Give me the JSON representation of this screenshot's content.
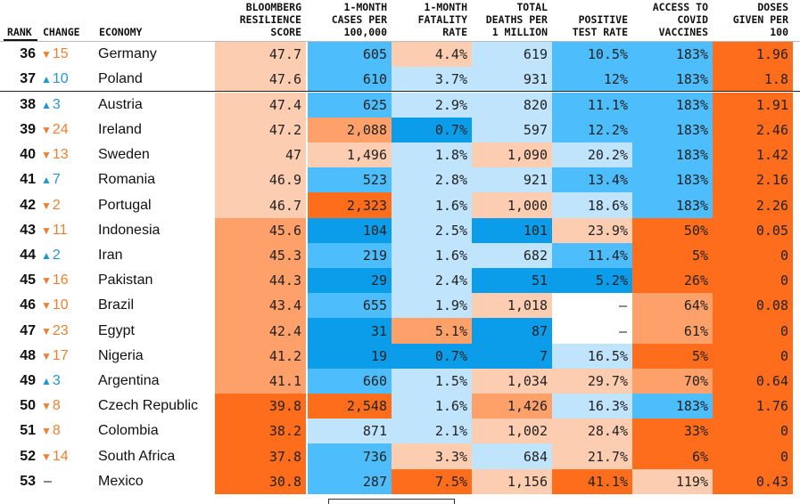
{
  "colors": {
    "dark_orange": "#fe6d1b",
    "mid_orange": "#fea06a",
    "light_orange": "#fdcdb1",
    "light_blue": "#bfe4fb",
    "mid_blue": "#4ebdfb",
    "dark_blue": "#0b9de9",
    "up_arrow": "#2196d3",
    "down_arrow": "#f07f2f"
  },
  "chart_data": {
    "type": "table",
    "columns": [
      {
        "key": "rank",
        "label": "RANK"
      },
      {
        "key": "change",
        "label": "CHANGE"
      },
      {
        "key": "economy",
        "label": "ECONOMY"
      },
      {
        "key": "score",
        "label": [
          "BLOOMBERG",
          "RESILIENCE",
          "SCORE"
        ]
      },
      {
        "key": "cases",
        "label": [
          "1-MONTH",
          "CASES PER",
          "100,000"
        ]
      },
      {
        "key": "fatality",
        "label": [
          "1-MONTH",
          "FATALITY",
          "RATE"
        ]
      },
      {
        "key": "deaths",
        "label": [
          "TOTAL",
          "DEATHS PER",
          "1 MILLION"
        ]
      },
      {
        "key": "positive",
        "label": [
          "POSITIVE",
          "TEST RATE"
        ]
      },
      {
        "key": "access",
        "label": [
          "ACCESS TO",
          "COVID",
          "VACCINES"
        ]
      },
      {
        "key": "doses",
        "label": [
          "DOSES",
          "GIVEN PER",
          "100"
        ]
      }
    ],
    "rows": [
      {
        "rank": "36",
        "dir": "down",
        "change": "15",
        "economy": "Germany",
        "score": "47.7",
        "cases": "605",
        "fatality": "4.4%",
        "deaths": "619",
        "positive": "10.5%",
        "access": "183%",
        "doses": "1.96"
      },
      {
        "rank": "37",
        "dir": "up",
        "change": "10",
        "economy": "Poland",
        "score": "47.6",
        "cases": "610",
        "fatality": "3.7%",
        "deaths": "931",
        "positive": "12%",
        "access": "183%",
        "doses": "1.8"
      },
      {
        "rank": "38",
        "dir": "up",
        "change": "3",
        "economy": "Austria",
        "score": "47.4",
        "cases": "625",
        "fatality": "2.9%",
        "deaths": "820",
        "positive": "11.1%",
        "access": "183%",
        "doses": "1.91"
      },
      {
        "rank": "39",
        "dir": "down",
        "change": "24",
        "economy": "Ireland",
        "score": "47.2",
        "cases": "2,088",
        "fatality": "0.7%",
        "deaths": "597",
        "positive": "12.2%",
        "access": "183%",
        "doses": "2.46"
      },
      {
        "rank": "40",
        "dir": "down",
        "change": "13",
        "economy": "Sweden",
        "score": "47",
        "cases": "1,496",
        "fatality": "1.8%",
        "deaths": "1,090",
        "positive": "20.2%",
        "access": "183%",
        "doses": "1.42"
      },
      {
        "rank": "41",
        "dir": "up",
        "change": "7",
        "economy": "Romania",
        "score": "46.9",
        "cases": "523",
        "fatality": "2.8%",
        "deaths": "921",
        "positive": "13.4%",
        "access": "183%",
        "doses": "2.16"
      },
      {
        "rank": "42",
        "dir": "down",
        "change": "2",
        "economy": "Portugal",
        "score": "46.7",
        "cases": "2,323",
        "fatality": "1.6%",
        "deaths": "1,000",
        "positive": "18.6%",
        "access": "183%",
        "doses": "2.26"
      },
      {
        "rank": "43",
        "dir": "down",
        "change": "11",
        "economy": "Indonesia",
        "score": "45.6",
        "cases": "104",
        "fatality": "2.5%",
        "deaths": "101",
        "positive": "23.9%",
        "access": "50%",
        "doses": "0.05"
      },
      {
        "rank": "44",
        "dir": "up",
        "change": "2",
        "economy": "Iran",
        "score": "45.3",
        "cases": "219",
        "fatality": "1.6%",
        "deaths": "682",
        "positive": "11.4%",
        "access": "5%",
        "doses": "0"
      },
      {
        "rank": "45",
        "dir": "down",
        "change": "16",
        "economy": "Pakistan",
        "score": "44.3",
        "cases": "29",
        "fatality": "2.4%",
        "deaths": "51",
        "positive": "5.2%",
        "access": "26%",
        "doses": "0"
      },
      {
        "rank": "46",
        "dir": "down",
        "change": "10",
        "economy": "Brazil",
        "score": "43.4",
        "cases": "655",
        "fatality": "1.9%",
        "deaths": "1,018",
        "positive": "–",
        "access": "64%",
        "doses": "0.08"
      },
      {
        "rank": "47",
        "dir": "down",
        "change": "23",
        "economy": "Egypt",
        "score": "42.4",
        "cases": "31",
        "fatality": "5.1%",
        "deaths": "87",
        "positive": "–",
        "access": "61%",
        "doses": "0"
      },
      {
        "rank": "48",
        "dir": "down",
        "change": "17",
        "economy": "Nigeria",
        "score": "41.2",
        "cases": "19",
        "fatality": "0.7%",
        "deaths": "7",
        "positive": "16.5%",
        "access": "5%",
        "doses": "0"
      },
      {
        "rank": "49",
        "dir": "up",
        "change": "3",
        "economy": "Argentina",
        "score": "41.1",
        "cases": "660",
        "fatality": "1.5%",
        "deaths": "1,034",
        "positive": "29.7%",
        "access": "70%",
        "doses": "0.64"
      },
      {
        "rank": "50",
        "dir": "down",
        "change": "8",
        "economy": "Czech Republic",
        "score": "39.8",
        "cases": "2,548",
        "fatality": "1.6%",
        "deaths": "1,426",
        "positive": "16.3%",
        "access": "183%",
        "doses": "1.76"
      },
      {
        "rank": "51",
        "dir": "down",
        "change": "8",
        "economy": "Colombia",
        "score": "38.2",
        "cases": "871",
        "fatality": "2.1%",
        "deaths": "1,002",
        "positive": "28.4%",
        "access": "33%",
        "doses": "0"
      },
      {
        "rank": "52",
        "dir": "down",
        "change": "14",
        "economy": "South Africa",
        "score": "37.8",
        "cases": "736",
        "fatality": "3.3%",
        "deaths": "684",
        "positive": "21.7%",
        "access": "6%",
        "doses": "0"
      },
      {
        "rank": "53",
        "dir": "none",
        "change": "–",
        "economy": "Mexico",
        "score": "30.8",
        "cases": "287",
        "fatality": "7.5%",
        "deaths": "1,156",
        "positive": "41.1%",
        "access": "119%",
        "doses": "0.43"
      }
    ],
    "cell_colors": [
      [
        "light_orange",
        "mid_blue",
        "light_orange",
        "light_blue",
        "mid_blue",
        "mid_blue",
        "dark_orange"
      ],
      [
        "light_orange",
        "mid_blue",
        "light_blue",
        "light_blue",
        "mid_blue",
        "mid_blue",
        "dark_orange"
      ],
      [
        "light_orange",
        "mid_blue",
        "light_blue",
        "light_blue",
        "mid_blue",
        "mid_blue",
        "dark_orange"
      ],
      [
        "light_orange",
        "mid_orange",
        "dark_blue",
        "light_blue",
        "mid_blue",
        "mid_blue",
        "dark_orange"
      ],
      [
        "light_orange",
        "light_orange",
        "light_blue",
        "light_orange",
        "light_blue",
        "mid_blue",
        "dark_orange"
      ],
      [
        "light_orange",
        "mid_blue",
        "light_blue",
        "light_blue",
        "mid_blue",
        "mid_blue",
        "dark_orange"
      ],
      [
        "light_orange",
        "dark_orange",
        "light_blue",
        "light_orange",
        "light_blue",
        "mid_blue",
        "dark_orange"
      ],
      [
        "mid_orange",
        "dark_blue",
        "light_blue",
        "dark_blue",
        "light_orange",
        "dark_orange",
        "dark_orange"
      ],
      [
        "mid_orange",
        "mid_blue",
        "light_blue",
        "light_blue",
        "mid_blue",
        "dark_orange",
        "dark_orange"
      ],
      [
        "mid_orange",
        "dark_blue",
        "light_blue",
        "dark_blue",
        "dark_blue",
        "dark_orange",
        "dark_orange"
      ],
      [
        "mid_orange",
        "mid_blue",
        "light_blue",
        "light_orange",
        "white",
        "mid_orange",
        "dark_orange"
      ],
      [
        "mid_orange",
        "dark_blue",
        "mid_orange",
        "dark_blue",
        "white",
        "mid_orange",
        "dark_orange"
      ],
      [
        "mid_orange",
        "dark_blue",
        "dark_blue",
        "dark_blue",
        "light_blue",
        "dark_orange",
        "dark_orange"
      ],
      [
        "mid_orange",
        "mid_blue",
        "light_blue",
        "light_orange",
        "light_orange",
        "mid_orange",
        "dark_orange"
      ],
      [
        "dark_orange",
        "dark_orange",
        "light_blue",
        "mid_orange",
        "light_blue",
        "mid_blue",
        "dark_orange"
      ],
      [
        "dark_orange",
        "light_blue",
        "light_blue",
        "light_orange",
        "light_orange",
        "dark_orange",
        "dark_orange"
      ],
      [
        "dark_orange",
        "mid_blue",
        "light_orange",
        "light_blue",
        "light_orange",
        "dark_orange",
        "dark_orange"
      ],
      [
        "dark_orange",
        "mid_blue",
        "dark_orange",
        "light_orange",
        "dark_orange",
        "light_orange",
        "dark_orange"
      ]
    ]
  }
}
